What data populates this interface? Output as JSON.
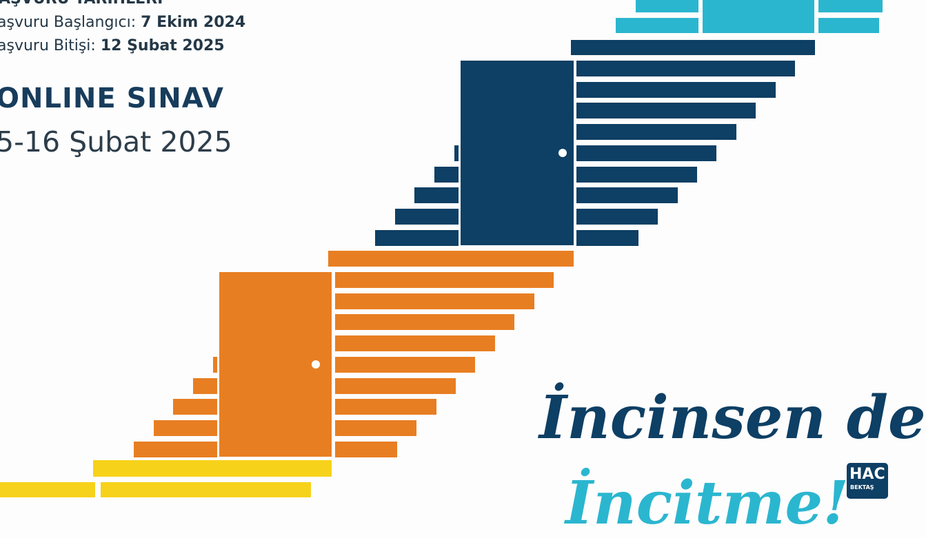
{
  "dates": {
    "heading": "AŞVURU TARİHLERİ",
    "start_label": "aşvuru Başlangıcı: ",
    "start_value": "7 Ekim 2024",
    "end_label": "aşvuru Bitişi: ",
    "end_value": "12 Şubat 2025"
  },
  "exam": {
    "title": "ONLINE SINAV",
    "date": "5-16 Şubat 2025"
  },
  "slogan": {
    "line1": "İncinsen de",
    "line2": "İncitme!"
  },
  "logo": {
    "text": "HACI BEKTAŞ",
    "visible_top": "HAC",
    "visible_bottom": "BEKTAŞ"
  },
  "colors": {
    "navy": "#0e3f64",
    "orange": "#e87e22",
    "yellow": "#f7d21a",
    "cyan": "#2bb6cf"
  }
}
